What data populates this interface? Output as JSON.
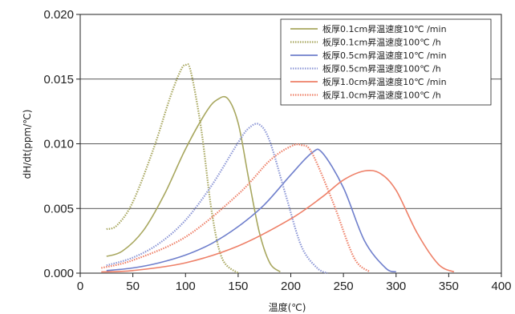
{
  "chart_data": {
    "type": "line",
    "title": "",
    "xlabel": "温度(℃)",
    "ylabel": "dH/dt(ppm/℃)",
    "xlim": [
      0,
      400
    ],
    "ylim": [
      0,
      0.02
    ],
    "xticks": [
      "0",
      "50",
      "100",
      "150",
      "200",
      "250",
      "300",
      "350",
      "400"
    ],
    "yticks": [
      "0.000",
      "0.005",
      "0.010",
      "0.015",
      "0.020"
    ],
    "grid": "horizontal",
    "legend_position": "top-right",
    "series": [
      {
        "name": "板厚0.1cm昇温速度10℃ /min",
        "color": "#a8a75f",
        "style": "solid",
        "x": [
          25,
          40,
          60,
          80,
          100,
          120,
          130,
          140,
          150,
          160,
          170,
          180,
          190
        ],
        "y": [
          0.0013,
          0.0017,
          0.0033,
          0.0061,
          0.0096,
          0.0125,
          0.0134,
          0.0135,
          0.0116,
          0.0073,
          0.0032,
          0.0008,
          0.0001
        ]
      },
      {
        "name": "板厚0.1cm昇温速度100℃ /h",
        "color": "#a8a75f",
        "style": "dotted",
        "x": [
          25,
          35,
          50,
          70,
          85,
          95,
          100,
          105,
          115,
          125,
          135,
          150
        ],
        "y": [
          0.0034,
          0.0037,
          0.0055,
          0.0097,
          0.0135,
          0.0156,
          0.0161,
          0.0156,
          0.0111,
          0.0047,
          0.0011,
          0.0
        ]
      },
      {
        "name": "板厚0.5cm昇温速度10℃ /min",
        "color": "#6f7fcc",
        "style": "solid",
        "x": [
          25,
          50,
          75,
          100,
          125,
          150,
          175,
          200,
          220,
          230,
          250,
          270,
          290,
          300
        ],
        "y": [
          0.0002,
          0.0004,
          0.0008,
          0.0014,
          0.0023,
          0.0036,
          0.0053,
          0.0076,
          0.0093,
          0.0093,
          0.0066,
          0.0025,
          0.0004,
          0.0001
        ]
      },
      {
        "name": "板厚0.5cm昇温速度100℃ /h",
        "color": "#8c97d6",
        "style": "dotted",
        "x": [
          25,
          50,
          75,
          100,
          125,
          150,
          160,
          170,
          180,
          195,
          210,
          225,
          235
        ],
        "y": [
          0.0006,
          0.0012,
          0.0023,
          0.0041,
          0.0068,
          0.0101,
          0.0112,
          0.0115,
          0.0102,
          0.0061,
          0.0021,
          0.0004,
          0.0
        ]
      },
      {
        "name": "板厚1.0cm昇温速度10℃ /min",
        "color": "#ee8068",
        "style": "solid",
        "x": [
          20,
          50,
          100,
          150,
          200,
          230,
          250,
          270,
          285,
          300,
          320,
          340,
          355
        ],
        "y": [
          0.0001,
          0.0002,
          0.0008,
          0.0021,
          0.0042,
          0.0059,
          0.0072,
          0.0079,
          0.0077,
          0.0064,
          0.0031,
          0.0007,
          0.0001
        ]
      },
      {
        "name": "板厚1.0cm昇温速度100℃ /h",
        "color": "#ee8068",
        "style": "dotted",
        "x": [
          20,
          50,
          100,
          150,
          180,
          200,
          210,
          220,
          240,
          260,
          275
        ],
        "y": [
          0.0004,
          0.001,
          0.0028,
          0.0061,
          0.0087,
          0.0098,
          0.0099,
          0.0093,
          0.0055,
          0.0012,
          0.0001
        ]
      }
    ]
  }
}
